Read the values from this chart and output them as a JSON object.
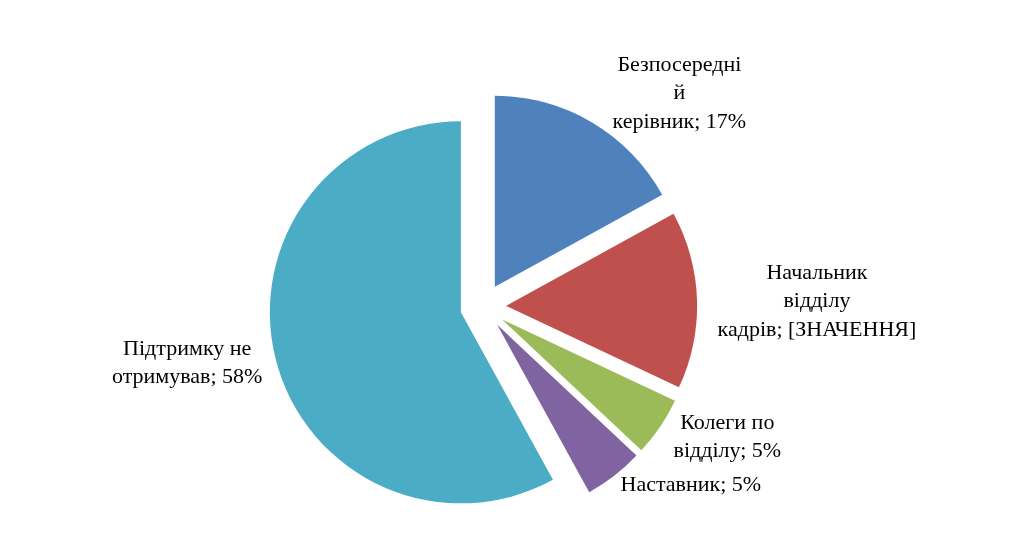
{
  "chart_data": {
    "type": "pie",
    "categories": [
      "Безпосередні й керівник",
      "Начальник відділу кадрів",
      "Колеги по відділу",
      "Наставник",
      "Підтримку не отримував"
    ],
    "values": [
      17,
      15,
      5,
      5,
      58
    ],
    "value_labels": [
      "17%",
      "[ЗНАЧЕННЯ]",
      "5%",
      "5%",
      "58%"
    ],
    "colors": [
      "#4f81bd",
      "#c0504d",
      "#9bbb59",
      "#8064a2",
      "#4bacc6"
    ],
    "legend": false
  }
}
